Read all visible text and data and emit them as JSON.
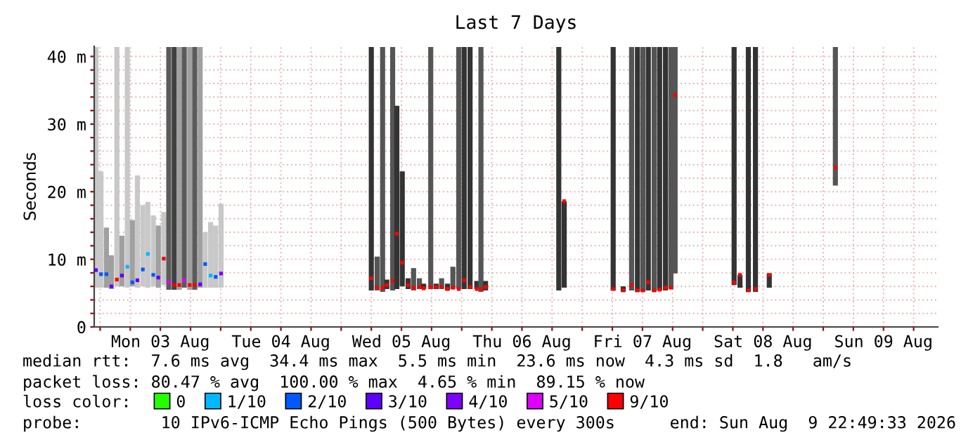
{
  "chart_data": {
    "type": "bar",
    "title": "Last 7 Days",
    "ylabel": "Seconds",
    "xlim": [
      "2026-08-02T22:49",
      "2026-08-09T22:49"
    ],
    "xticks": [
      {
        "value": "2026-08-03T00:00",
        "label": null
      },
      {
        "value": "2026-08-03T06:00",
        "label": null
      },
      {
        "value": "2026-08-03T12:00",
        "label": "Mon 03 Aug"
      },
      {
        "value": "2026-08-03T18:00",
        "label": null
      },
      {
        "value": "2026-08-04T00:00",
        "label": null
      },
      {
        "value": "2026-08-04T06:00",
        "label": null
      },
      {
        "value": "2026-08-04T12:00",
        "label": "Tue 04 Aug"
      },
      {
        "value": "2026-08-04T18:00",
        "label": null
      },
      {
        "value": "2026-08-05T00:00",
        "label": null
      },
      {
        "value": "2026-08-05T06:00",
        "label": null
      },
      {
        "value": "2026-08-05T12:00",
        "label": "Wed 05 Aug"
      },
      {
        "value": "2026-08-05T18:00",
        "label": null
      },
      {
        "value": "2026-08-06T00:00",
        "label": null
      },
      {
        "value": "2026-08-06T06:00",
        "label": null
      },
      {
        "value": "2026-08-06T12:00",
        "label": "Thu 06 Aug"
      },
      {
        "value": "2026-08-06T18:00",
        "label": null
      },
      {
        "value": "2026-08-07T00:00",
        "label": null
      },
      {
        "value": "2026-08-07T06:00",
        "label": null
      },
      {
        "value": "2026-08-07T12:00",
        "label": "Fri 07 Aug"
      },
      {
        "value": "2026-08-07T18:00",
        "label": null
      },
      {
        "value": "2026-08-08T00:00",
        "label": null
      },
      {
        "value": "2026-08-08T06:00",
        "label": null
      },
      {
        "value": "2026-08-08T12:00",
        "label": "Sat 08 Aug"
      },
      {
        "value": "2026-08-08T18:00",
        "label": null
      },
      {
        "value": "2026-08-09T00:00",
        "label": null
      },
      {
        "value": "2026-08-09T06:00",
        "label": null
      },
      {
        "value": "2026-08-09T12:00",
        "label": "Sun 09 Aug"
      },
      {
        "value": "2026-08-09T18:00",
        "label": null
      }
    ],
    "ylim": [
      0,
      41.5
    ],
    "yticks": [
      0,
      {
        "value": 2,
        "label": null
      },
      {
        "value": 4,
        "label": null
      },
      {
        "value": 6,
        "label": null
      },
      {
        "value": 8,
        "label": null
      },
      {
        "value": 10,
        "label": "10 m"
      },
      {
        "value": 12,
        "label": null
      },
      {
        "value": 14,
        "label": null
      },
      {
        "value": 16,
        "label": null
      },
      {
        "value": 18,
        "label": null
      },
      {
        "value": 20,
        "label": "20 m"
      },
      {
        "value": 22,
        "label": null
      },
      {
        "value": 24,
        "label": null
      },
      {
        "value": 26,
        "label": null
      },
      {
        "value": 28,
        "label": null
      },
      {
        "value": 30,
        "label": "30 m"
      },
      {
        "value": 32,
        "label": null
      },
      {
        "value": 34,
        "label": null
      },
      {
        "value": 36,
        "label": null
      },
      {
        "value": 38,
        "label": null
      },
      {
        "value": 40,
        "label": "40 m"
      }
    ],
    "grid": true,
    "legend": "bottom",
    "legend_title": "loss color:",
    "marker": "square",
    "series": [
      {
        "x": [
          "2026-08-02T23:10",
          "2026-08-03T00:10",
          "2026-08-03T01:15",
          "2026-08-03T02:15",
          "2026-08-03T03:20",
          "2026-08-03T04:20",
          "2026-08-03T05:25",
          "2026-08-03T06:25",
          "2026-08-03T07:25",
          "2026-08-03T08:30",
          "2026-08-03T09:30",
          "2026-08-03T10:35",
          "2026-08-03T11:35",
          "2026-08-03T12:40",
          "2026-08-03T13:40",
          "2026-08-03T14:45",
          "2026-08-03T15:45",
          "2026-08-03T16:45",
          "2026-08-03T17:50",
          "2026-08-03T18:50",
          "2026-08-03T19:55",
          "2026-08-03T20:55",
          "2026-08-03T22:00",
          "2026-08-03T23:00",
          "2026-08-04T00:05",
          "2026-08-05T06:00",
          "2026-08-05T07:10",
          "2026-08-05T08:15",
          "2026-08-05T09:05",
          "2026-08-05T10:15",
          "2026-08-05T11:05",
          "2026-08-05T12:10",
          "2026-08-05T13:20",
          "2026-08-05T14:25",
          "2026-08-05T15:35",
          "2026-08-05T16:25",
          "2026-08-05T17:50",
          "2026-08-05T18:55",
          "2026-08-05T20:00",
          "2026-08-05T21:10",
          "2026-08-05T22:15",
          "2026-08-05T23:25",
          "2026-08-06T00:30",
          "2026-08-06T01:40",
          "2026-08-06T03:00",
          "2026-08-06T03:50",
          "2026-08-06T04:45",
          "2026-08-06T19:20",
          "2026-08-06T20:25",
          "2026-08-07T06:10",
          "2026-08-07T08:10",
          "2026-08-07T09:50",
          "2026-08-07T11:00",
          "2026-08-07T12:05",
          "2026-08-07T13:10",
          "2026-08-07T14:20",
          "2026-08-07T15:25",
          "2026-08-07T16:35",
          "2026-08-07T17:40",
          "2026-08-07T18:30",
          "2026-08-08T06:15",
          "2026-08-08T07:25",
          "2026-08-08T09:05",
          "2026-08-08T10:30",
          "2026-08-08T13:15",
          "2026-08-09T02:25"
        ],
        "base": [
          5.8,
          5.8,
          5.8,
          5.6,
          6.0,
          6.0,
          5.8,
          6.0,
          5.8,
          6.0,
          5.8,
          6.0,
          5.8,
          6.2,
          5.5,
          5.5,
          5.5,
          5.8,
          5.5,
          5.5,
          5.8,
          5.8,
          5.8,
          5.8,
          5.8,
          5.4,
          5.4,
          5.2,
          5.6,
          5.4,
          5.6,
          6.0,
          5.6,
          5.4,
          5.6,
          5.6,
          5.6,
          5.6,
          5.6,
          5.4,
          5.6,
          5.6,
          5.6,
          5.6,
          5.6,
          5.2,
          5.4,
          5.4,
          5.8,
          5.4,
          5.2,
          5.4,
          5.2,
          5.2,
          5.4,
          5.2,
          5.4,
          5.4,
          5.6,
          7.9,
          6.2,
          5.8,
          5.2,
          5.2,
          5.8,
          20.9
        ],
        "values": [
          35.6,
          17.2,
          8.9,
          5.0,
          35.4,
          7.5,
          35.6,
          9.8,
          16.6,
          12.0,
          12.7,
          10.5,
          9.2,
          10.8,
          35.9,
          35.9,
          35.9,
          35.6,
          35.9,
          35.9,
          35.6,
          8.2,
          9.7,
          9.2,
          12.4,
          36.0,
          5.0,
          36.2,
          1.4,
          36.0,
          27.1,
          17.0,
          1.6,
          3.3,
          1.6,
          0.8,
          35.8,
          0.8,
          1.6,
          1.0,
          3.3,
          35.8,
          35.8,
          35.8,
          1.2,
          36.2,
          1.4,
          36.0,
          12.8,
          36.0,
          0.8,
          36.0,
          36.2,
          36.2,
          36.0,
          36.2,
          36.0,
          36.0,
          35.8,
          33.5,
          35.2,
          1.9,
          36.2,
          36.2,
          2.1,
          20.5
        ],
        "colors": [
          "#c8c8c8",
          "#c8c8c8",
          "#a0a0a0",
          "#a0a0a0",
          "#c8c8c8",
          "#a0a0a0",
          "#c8c8c8",
          "#a0a0a0",
          "#c8c8c8",
          "#c8c8c8",
          "#c8c8c8",
          "#c8c8c8",
          "#a0a0a0",
          "#c8c8c8",
          "#5a5a5a",
          "#404040",
          "#a0a0a0",
          "#5a5a5a",
          "#a0a0a0",
          "#5a5a5a",
          "#a0a0a0",
          "#c8c8c8",
          "#c8c8c8",
          "#c8c8c8",
          "#c8c8c8",
          "#333333",
          "#555555",
          "#555555",
          "#333333",
          "#555555",
          "#333333",
          "#333333",
          "#333333",
          "#555555",
          "#555555",
          "#333333",
          "#555555",
          "#333333",
          "#555555",
          "#333333",
          "#555555",
          "#555555",
          "#333333",
          "#333333",
          "#333333",
          "#555555",
          "#333333",
          "#333333",
          "#333333",
          "#333333",
          "#333333",
          "#555555",
          "#333333",
          "#555555",
          "#333333",
          "#555555",
          "#333333",
          "#333333",
          "#555555",
          "#555555",
          "#333333",
          "#333333",
          "#333333",
          "#333333",
          "#333333",
          "#555555"
        ]
      },
      {
        "type": "scatter",
        "name": "0",
        "color": "#26ff00"
      },
      {
        "type": "scatter",
        "name": "1/10",
        "color": "#00b8ff",
        "x": [
          "2026-08-03T05:25",
          "2026-08-03T09:30",
          "2026-08-03T22:00"
        ],
        "values": [
          8.9,
          10.8,
          7.6
        ]
      },
      {
        "type": "scatter",
        "name": "2/10",
        "color": "#0059ff",
        "x": [
          "2026-08-03T00:10",
          "2026-08-03T01:15",
          "2026-08-03T06:25",
          "2026-08-03T08:30",
          "2026-08-03T10:35",
          "2026-08-03T20:55",
          "2026-08-03T23:00"
        ],
        "values": [
          7.8,
          7.8,
          6.6,
          8.5,
          7.7,
          9.3,
          7.4
        ]
      },
      {
        "type": "scatter",
        "name": "3/10",
        "color": "#5e00ff",
        "x": [
          "2026-08-02T23:10",
          "2026-08-03T02:15",
          "2026-08-03T04:20",
          "2026-08-03T07:25",
          "2026-08-03T11:35",
          "2026-08-03T19:55"
        ],
        "values": [
          8.4,
          6.0,
          7.6,
          6.9,
          7.3,
          6.3
        ]
      },
      {
        "type": "scatter",
        "name": "4/10",
        "color": "#7e00ff",
        "x": [
          "2026-08-04T00:05"
        ],
        "values": [
          7.9
        ]
      },
      {
        "type": "scatter",
        "name": "5/10",
        "color": "#dd00ff",
        "x": [
          "2026-08-03T13:40",
          "2026-08-03T16:45"
        ],
        "values": [
          6.6,
          6.9
        ]
      },
      {
        "type": "scatter",
        "name": "9/10",
        "color": "#ff0000",
        "x": [
          "2026-08-03T03:20",
          "2026-08-03T12:40",
          "2026-08-03T14:45",
          "2026-08-03T15:45",
          "2026-08-03T17:50",
          "2026-08-03T18:50",
          "2026-08-05T06:00",
          "2026-08-05T07:10",
          "2026-08-05T08:15",
          "2026-08-05T09:05",
          "2026-08-05T10:15",
          "2026-08-05T11:05",
          "2026-08-05T12:10",
          "2026-08-05T13:20",
          "2026-08-05T14:25",
          "2026-08-05T15:35",
          "2026-08-05T16:25",
          "2026-08-05T17:50",
          "2026-08-05T18:55",
          "2026-08-05T20:00",
          "2026-08-05T21:10",
          "2026-08-05T22:15",
          "2026-08-05T23:25",
          "2026-08-06T00:30",
          "2026-08-06T01:40",
          "2026-08-06T03:00",
          "2026-08-06T03:50",
          "2026-08-06T04:45",
          "2026-08-06T20:25",
          "2026-08-07T06:10",
          "2026-08-07T08:10",
          "2026-08-07T09:50",
          "2026-08-07T11:00",
          "2026-08-07T12:05",
          "2026-08-07T13:10",
          "2026-08-07T14:20",
          "2026-08-07T15:25",
          "2026-08-07T16:35",
          "2026-08-07T17:40",
          "2026-08-07T18:30",
          "2026-08-08T06:15",
          "2026-08-08T07:25",
          "2026-08-08T09:05",
          "2026-08-08T10:30",
          "2026-08-08T13:15",
          "2026-08-09T02:25"
        ],
        "values": [
          7.0,
          10.1,
          6.2,
          6.2,
          6.2,
          6.2,
          7.2,
          5.8,
          5.8,
          6.2,
          6.8,
          13.8,
          9.5,
          6.2,
          5.8,
          5.9,
          5.7,
          5.9,
          5.9,
          5.9,
          5.6,
          5.8,
          5.6,
          6.9,
          5.9,
          5.6,
          5.6,
          5.9,
          18.6,
          5.6,
          5.4,
          6.2,
          5.4,
          5.4,
          6.6,
          5.4,
          5.5,
          5.8,
          5.8,
          34.3,
          6.6,
          7.7,
          5.4,
          5.6,
          7.7,
          23.6
        ]
      }
    ],
    "annotations": [
      "median rtt:  7.6 ms avg  34.4 ms max  5.5 ms min  23.6 ms now  4.3 ms sd  1.8   am/s",
      "packet loss: 80.47 % avg  100.00 % max  4.65 % min  89.15 % now",
      "probe:        10 IPv6-ICMP Echo Pings (500 Bytes) every 300s",
      "end: Sun Aug  9 22:49:33 2026"
    ]
  }
}
